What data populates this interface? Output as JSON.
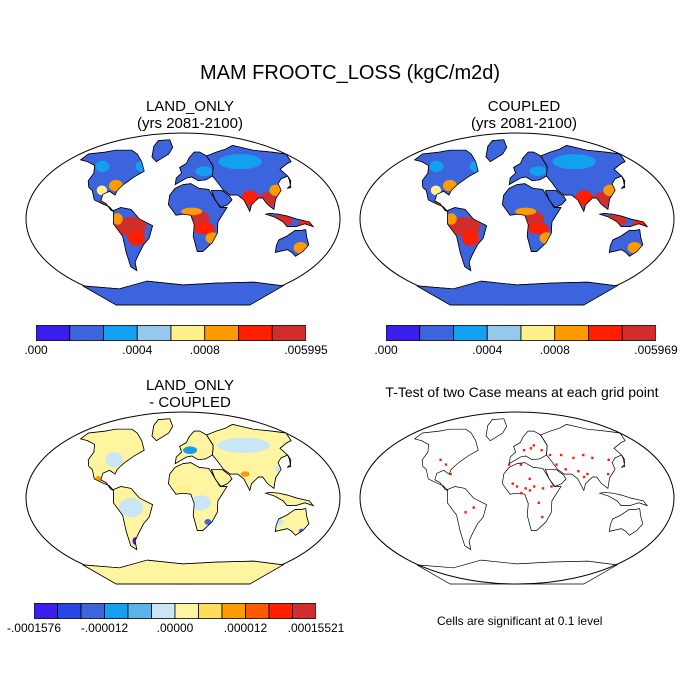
{
  "figure_title": "MAM FROOTC_LOSS (kgC/m2d)",
  "panels": {
    "land_only": {
      "title_line1": "LAND_ONLY",
      "title_line2": "(yrs 2081-2100)"
    },
    "coupled": {
      "title_line1": "COUPLED",
      "title_line2": "(yrs 2081-2100)"
    },
    "difference": {
      "title_line1": "LAND_ONLY",
      "title_line2": "- COUPLED"
    },
    "ttest": {
      "title": "T-Test of two Case means at each grid point",
      "note": "Cells are significant at 0.1 level"
    }
  },
  "colorbars": {
    "land_only": {
      "colors": [
        "#3a1eeb",
        "#3c64dc",
        "#14a0f0",
        "#96c8eb",
        "#fff08c",
        "#ff9b00",
        "#ff1e00",
        "#d22d2d"
      ],
      "labels": [
        ".000",
        ".0004",
        ".0008",
        ".005995"
      ]
    },
    "coupled": {
      "colors": [
        "#3a1eeb",
        "#3c64dc",
        "#14a0f0",
        "#96c8eb",
        "#fff08c",
        "#ff9b00",
        "#ff1e00",
        "#d22d2d"
      ],
      "labels": [
        ".000",
        ".0004",
        ".0008",
        ".005969"
      ]
    },
    "difference": {
      "colors": [
        "#3a1eeb",
        "#2846e6",
        "#3c64dc",
        "#14a0f0",
        "#5ab4eb",
        "#c8e6f5",
        "#fff5a0",
        "#ffdc5a",
        "#ff9b00",
        "#ff5a00",
        "#ff1e00",
        "#d22d2d"
      ],
      "labels": [
        "-.0001576",
        "-.000012",
        ".00000",
        ".000012",
        ".00015521"
      ]
    }
  },
  "map_colors": {
    "ocean": "#ffffff",
    "coast": "#000000",
    "low": "#3c64dc",
    "mid": "#14a0f0",
    "high": "#d22d2d",
    "peak": "#ff1e00",
    "warm": "#ff9b00",
    "yellow": "#fff08c",
    "pale_yellow": "#fff5a0",
    "light_blue": "#c8e6f5",
    "significant": "#ff1e00"
  }
}
